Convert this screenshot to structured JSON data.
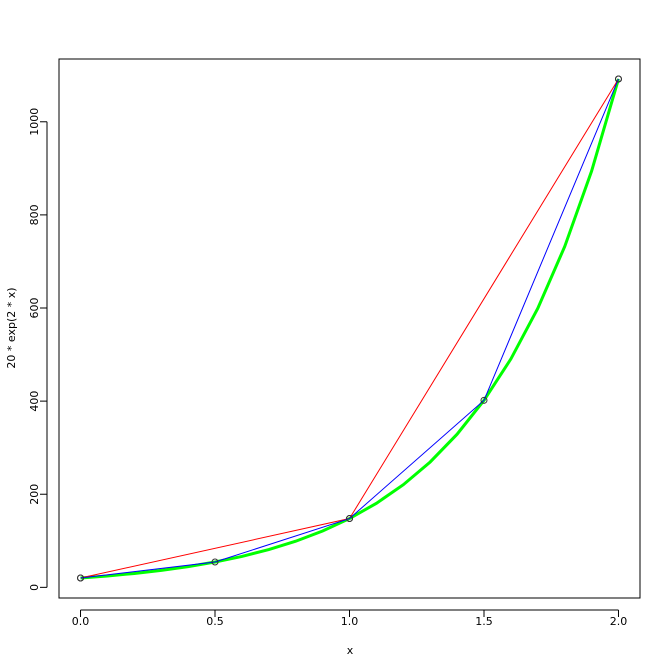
{
  "chart_data": {
    "type": "line",
    "xlabel": "x",
    "ylabel": "20 * exp(2 * x)",
    "xlim": [
      -0.08,
      2.08
    ],
    "ylim": [
      -22.88,
      1134.84
    ],
    "xticks": [
      {
        "value": 0,
        "label": "0.0"
      },
      {
        "value": 0.5,
        "label": "0.5"
      },
      {
        "value": 1,
        "label": "1.0"
      },
      {
        "value": 1.5,
        "label": "1.5"
      },
      {
        "value": 2,
        "label": "2.0"
      }
    ],
    "yticks": [
      0,
      200,
      400,
      600,
      800,
      1000
    ],
    "series": [
      {
        "color": "#00ff00",
        "width": 3,
        "markers": false,
        "x": [
          0,
          0.1,
          0.2,
          0.3,
          0.4,
          0.5,
          0.6,
          0.7,
          0.8,
          0.9,
          1.0,
          1.1,
          1.2,
          1.3,
          1.4,
          1.5,
          1.6,
          1.7,
          1.8,
          1.9,
          2.0
        ],
        "values": [
          20,
          24.43,
          29.84,
          36.44,
          44.51,
          54.37,
          66.4,
          81.1,
          99.06,
          120.99,
          147.78,
          180.5,
          220.46,
          269.27,
          328.89,
          401.71,
          490.65,
          599.28,
          731.96,
          894.02,
          1091.96
        ]
      },
      {
        "color": "#ff0000",
        "width": 1,
        "markers": true,
        "x": [
          0,
          1,
          2
        ],
        "values": [
          20,
          147.78,
          1091.96
        ]
      },
      {
        "color": "#0000ff",
        "width": 1,
        "markers": true,
        "x": [
          0,
          0.5,
          1,
          1.5,
          2
        ],
        "values": [
          20,
          54.37,
          147.78,
          401.71,
          1091.96
        ]
      }
    ]
  }
}
